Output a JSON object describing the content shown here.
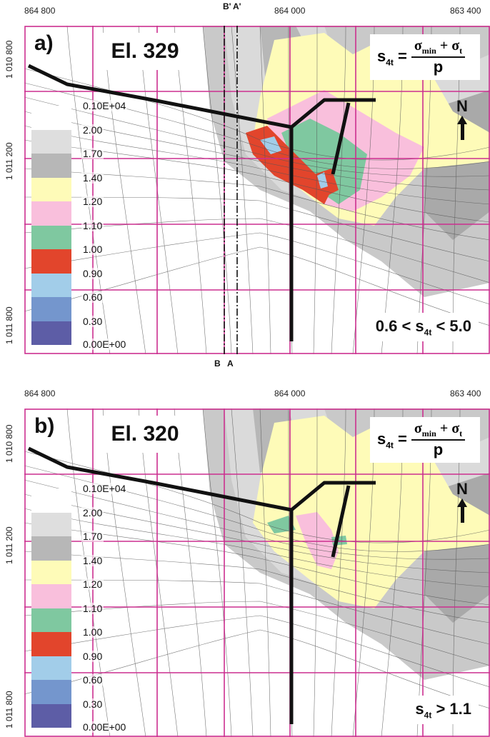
{
  "coords_top": {
    "x1": "864 800",
    "x2": "864 000",
    "x3": "863 400"
  },
  "coords_left": {
    "y1": "1 010 800",
    "y2": "1 011 200",
    "y3": "1 011 800"
  },
  "sections": {
    "b_top": "B'",
    "a_top": "A'",
    "b_bottom": "B",
    "a_bottom": "A"
  },
  "formula": {
    "lhs": "s",
    "lhs_sub": "4t",
    "eq": "=",
    "num_sigma1": "σ",
    "num_sub1": "min",
    "plus": "+",
    "num_sigma2": "σ",
    "num_sub2": "t",
    "den": "p"
  },
  "north": "N",
  "legend": [
    {
      "color": "#ffffff",
      "label": "0.10E+04"
    },
    {
      "color": "#dedede",
      "label": "2.00"
    },
    {
      "color": "#b7b7b7",
      "label": "1.70"
    },
    {
      "color": "#fefbb8",
      "label": "1.40"
    },
    {
      "color": "#f9bfdc",
      "label": "1.20"
    },
    {
      "color": "#7fc8a0",
      "label": "1.10"
    },
    {
      "color": "#e2452c",
      "label": "1.00"
    },
    {
      "color": "#a2cde9",
      "label": "0.90"
    },
    {
      "color": "#7496cd",
      "label": "0.60"
    },
    {
      "color": "#5d5da6",
      "label": "0.30"
    },
    {
      "color": "",
      "label": "0.00E+00"
    }
  ],
  "panel_a": {
    "label": "a)",
    "elevation": "El. 329",
    "range_prefix": "0.6 < s",
    "range_sub": "4t",
    "range_suffix": " < 5.0"
  },
  "panel_b": {
    "label": "b)",
    "elevation": "El. 320",
    "range_prefix": "s",
    "range_sub": "4t",
    "range_suffix": " > 1.1"
  }
}
